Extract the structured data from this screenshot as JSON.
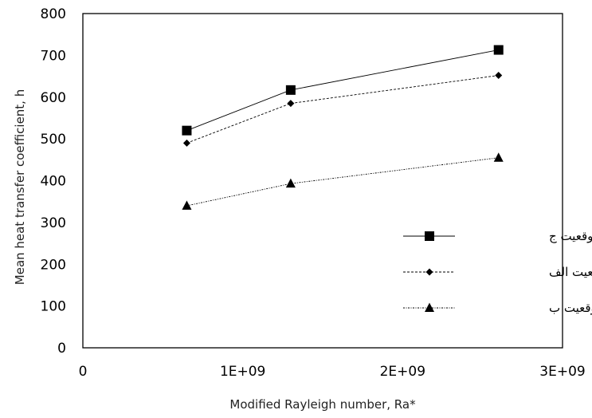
{
  "chart_data": {
    "type": "line",
    "title": "",
    "xlabel": "Modified Rayleigh number, Ra*",
    "ylabel": "Mean heat transfer coefficient, h",
    "xlim": [
      0,
      3000000000
    ],
    "ylim": [
      0,
      800
    ],
    "xticks": [
      0,
      1000000000,
      2000000000,
      3000000000
    ],
    "xtick_labels": [
      "0",
      "1E+09",
      "2E+09",
      "3E+09"
    ],
    "yticks": [
      0,
      100,
      200,
      300,
      400,
      500,
      600,
      700,
      800
    ],
    "ytick_labels": [
      "0",
      "100",
      "200",
      "300",
      "400",
      "500",
      "600",
      "700",
      "800"
    ],
    "grid": false,
    "legend_position": "right",
    "x": [
      650000000,
      1300000000,
      2600000000
    ],
    "series": [
      {
        "name": "موقعیت ج",
        "values": [
          520,
          617,
          713
        ],
        "marker": "square",
        "line": "solid"
      },
      {
        "name": "موقعیت الف",
        "values": [
          490,
          585,
          652
        ],
        "marker": "diamond",
        "line": "dashed"
      },
      {
        "name": "موقعیت ب",
        "values": [
          340,
          393,
          455
        ],
        "marker": "triangle",
        "line": "dotted"
      }
    ]
  }
}
